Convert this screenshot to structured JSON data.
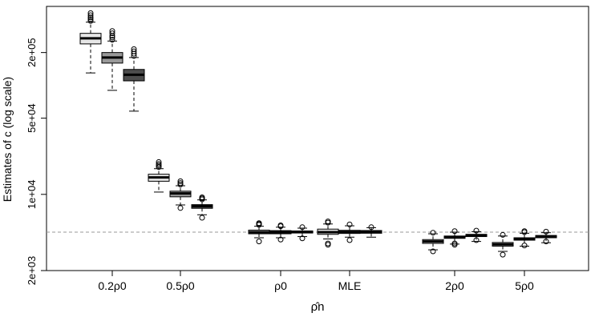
{
  "chart_data": {
    "type": "boxplot",
    "ylabel": "Estimates of c (log scale)",
    "xlabel": "ρ̂n",
    "y_scale": "log",
    "ylim": [
      2000,
      530000
    ],
    "grid": false,
    "reference_line": 4500,
    "y_ticks": [
      {
        "value": 2000,
        "label": "2e+03"
      },
      {
        "value": 10000,
        "label": "1e+04"
      },
      {
        "value": 50000,
        "label": "5e+04"
      },
      {
        "value": 200000,
        "label": "2e+05"
      }
    ],
    "group_colors": [
      "#e6e6e6",
      "#999999",
      "#4d4d4d"
    ],
    "groups": [
      {
        "label": "0.2ρ0",
        "boxes": [
          {
            "lw": 130000,
            "q1": 240000,
            "med": 270000,
            "q3": 300000,
            "uw": 380000,
            "out": [
              390000,
              405000,
              420000,
              440000,
              460000
            ]
          },
          {
            "lw": 90000,
            "q1": 160000,
            "med": 180000,
            "q3": 200000,
            "uw": 255000,
            "out": [
              262000,
              275000,
              285000,
              300000,
              315000
            ]
          },
          {
            "lw": 58000,
            "q1": 110000,
            "med": 125000,
            "q3": 140000,
            "uw": 180000,
            "out": [
              186000,
              195000,
              205000,
              215000
            ]
          }
        ]
      },
      {
        "label": "0.5ρ0",
        "boxes": [
          {
            "lw": 10500,
            "q1": 13200,
            "med": 14300,
            "q3": 15300,
            "uw": 17200,
            "out": [
              17800,
              18400,
              19000,
              19800
            ]
          },
          {
            "lw": 8000,
            "q1": 9500,
            "med": 10200,
            "q3": 10700,
            "uw": 12000,
            "out": [
              7500,
              12300,
              12700,
              13200
            ]
          },
          {
            "lw": 6500,
            "q1": 7450,
            "med": 7800,
            "q3": 8050,
            "uw": 8900,
            "out": [
              6100,
              9000,
              9200,
              9400
            ]
          }
        ]
      },
      {
        "label": "ρ0",
        "boxes": [
          {
            "lw": 4000,
            "q1": 4350,
            "med": 4500,
            "q3": 4700,
            "uw": 5100,
            "out": [
              3700,
              5250,
              5350,
              5450
            ]
          },
          {
            "lw": 4000,
            "q1": 4350,
            "med": 4500,
            "q3": 4650,
            "uw": 5000,
            "out": [
              3850,
              5100,
              5200
            ]
          },
          {
            "lw": 4100,
            "q1": 4420,
            "med": 4520,
            "q3": 4620,
            "uw": 4900,
            "out": [
              3950,
              5000
            ]
          }
        ]
      },
      {
        "label": "MLE",
        "boxes": [
          {
            "lw": 3900,
            "q1": 4300,
            "med": 4500,
            "q3": 4800,
            "uw": 5350,
            "out": [
              3550,
              3450,
              5500,
              5650
            ]
          },
          {
            "lw": 4050,
            "q1": 4380,
            "med": 4520,
            "q3": 4680,
            "uw": 5150,
            "out": [
              3800,
              5300
            ]
          },
          {
            "lw": 4050,
            "q1": 4400,
            "med": 4530,
            "q3": 4660,
            "uw": 4950,
            "out": [
              5000
            ]
          }
        ]
      },
      {
        "label": "2ρ0",
        "boxes": [
          {
            "lw": 3100,
            "q1": 3550,
            "med": 3700,
            "q3": 3850,
            "uw": 4350,
            "out": [
              3000,
              4450
            ]
          },
          {
            "lw": 3500,
            "q1": 3950,
            "med": 4050,
            "q3": 4150,
            "uw": 4500,
            "out": [
              3550,
              3450,
              4600
            ]
          },
          {
            "lw": 3700,
            "q1": 4100,
            "med": 4200,
            "q3": 4300,
            "uw": 4550,
            "out": [
              3800,
              4650
            ]
          }
        ]
      },
      {
        "label": "5ρ0",
        "boxes": [
          {
            "lw": 3000,
            "q1": 3350,
            "med": 3480,
            "q3": 3620,
            "uw": 4150,
            "out": [
              2800,
              4250
            ]
          },
          {
            "lw": 3350,
            "q1": 3800,
            "med": 3900,
            "q3": 4000,
            "uw": 4400,
            "out": [
              3400,
              4500,
              4600
            ]
          },
          {
            "lw": 3600,
            "q1": 4000,
            "med": 4100,
            "q3": 4200,
            "uw": 4450,
            "out": [
              3700,
              4550
            ]
          }
        ]
      }
    ]
  }
}
